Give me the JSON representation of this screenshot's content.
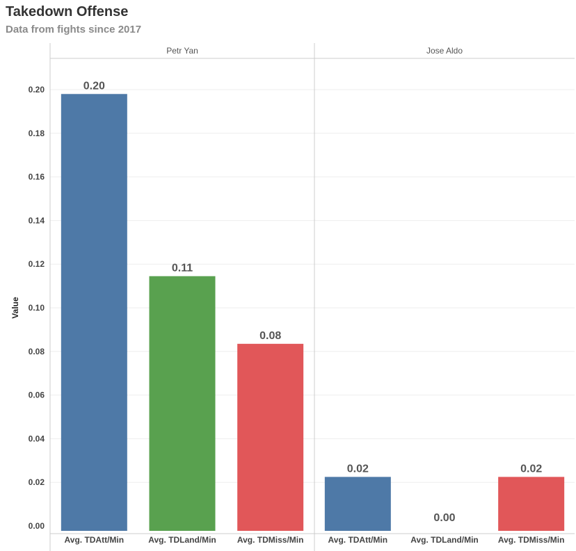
{
  "title": "Takedown Offense",
  "subtitle": "Data from fights since 2017",
  "chart_data": {
    "type": "bar",
    "ylabel": "Value",
    "ylim": [
      0,
      0.21
    ],
    "yticks": [
      "0.00",
      "0.02",
      "0.04",
      "0.06",
      "0.08",
      "0.10",
      "0.12",
      "0.14",
      "0.16",
      "0.18",
      "0.20"
    ],
    "grid": true,
    "categories": [
      "Avg. TDAtt/Min",
      "Avg. TDLand/Min",
      "Avg. TDMiss/Min"
    ],
    "category_colors": [
      "#4e79a7",
      "#59a14f",
      "#e15759"
    ],
    "panels": [
      {
        "name": "Petr Yan",
        "values": [
          0.198,
          0.1145,
          0.0835
        ],
        "labels": [
          "0.20",
          "0.11",
          "0.08"
        ]
      },
      {
        "name": "Jose Aldo",
        "values": [
          0.0225,
          0.0,
          0.0225
        ],
        "labels": [
          "0.02",
          "0.00",
          "0.02"
        ]
      }
    ]
  }
}
